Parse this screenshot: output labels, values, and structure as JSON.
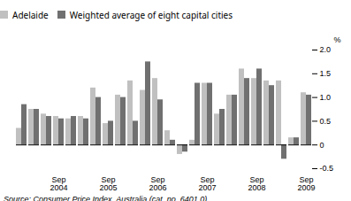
{
  "chart_data": {
    "type": "bar",
    "categories": [
      null,
      null,
      null,
      "Sep\n2004",
      null,
      null,
      null,
      "Sep\n2005",
      null,
      null,
      null,
      "Sep\n2006",
      null,
      null,
      null,
      "Sep\n2007",
      null,
      null,
      null,
      "Sep\n2008",
      null,
      null,
      null,
      "Sep\n2009"
    ],
    "series": [
      {
        "name": "Adelaide",
        "color": "#c0c0c0",
        "values": [
          0.35,
          0.75,
          0.65,
          0.6,
          0.55,
          0.6,
          1.2,
          0.45,
          1.05,
          1.35,
          1.15,
          1.4,
          0.3,
          -0.2,
          0.1,
          1.3,
          0.65,
          1.05,
          1.6,
          1.4,
          1.35,
          1.35,
          0.15,
          1.1
        ]
      },
      {
        "name": "Weighted average of eight capital cities",
        "color": "#707070",
        "values": [
          0.85,
          0.75,
          0.6,
          0.55,
          0.6,
          0.55,
          1.0,
          0.5,
          1.0,
          0.5,
          1.75,
          0.95,
          0.1,
          -0.15,
          1.3,
          1.3,
          0.75,
          1.05,
          1.4,
          1.6,
          1.25,
          -0.3,
          0.15,
          1.05
        ]
      }
    ],
    "y_label": "%",
    "ylim": [
      -0.5,
      2.0
    ],
    "yticks": [
      -0.5,
      0,
      0.5,
      {
        "value": 1.0,
        "label": "1.0"
      },
      1.5,
      {
        "value": 2.0,
        "label": "2.0"
      }
    ],
    "annotations": [
      "Source: Consumer Price Index, Australia (cat. no. 6401.0)"
    ],
    "legend": "top",
    "grid": false
  }
}
